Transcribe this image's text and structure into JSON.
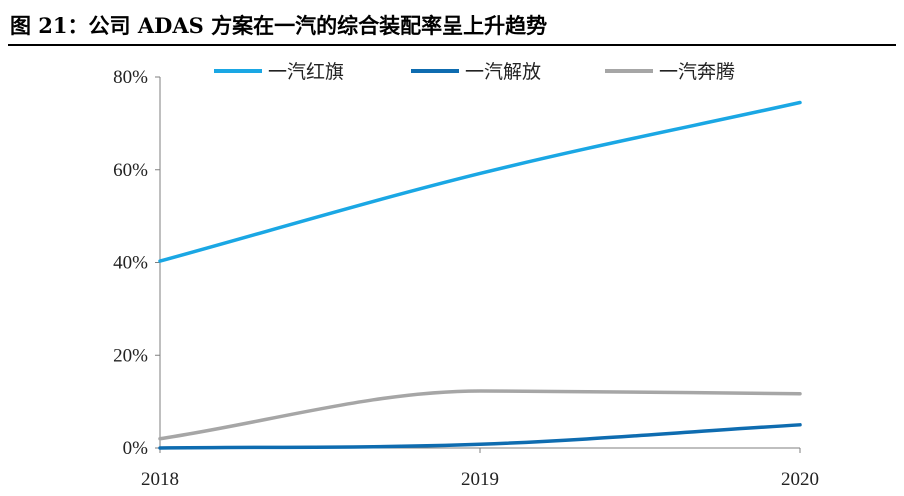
{
  "figure": {
    "title": "图 21：公司 ADAS 方案在一汽的综合装配率呈上升趋势"
  },
  "chart_data": {
    "type": "line",
    "x": [
      "2018",
      "2019",
      "2020"
    ],
    "series": [
      {
        "name": "一汽红旗",
        "values": [
          40.3,
          59.2,
          74.5
        ],
        "color": "#1aa7e4"
      },
      {
        "name": "一汽解放",
        "values": [
          0.0,
          0.8,
          5.0
        ],
        "color": "#0e6cb0"
      },
      {
        "name": "一汽奔腾",
        "values": [
          2.0,
          12.3,
          11.7
        ],
        "color": "#a6a6a6"
      }
    ],
    "y_ticks": [
      "0%",
      "20%",
      "40%",
      "60%",
      "80%"
    ],
    "ylim": [
      0,
      80
    ],
    "y_unit": "%",
    "grid": false,
    "legend_position": "top",
    "smooth": true
  }
}
